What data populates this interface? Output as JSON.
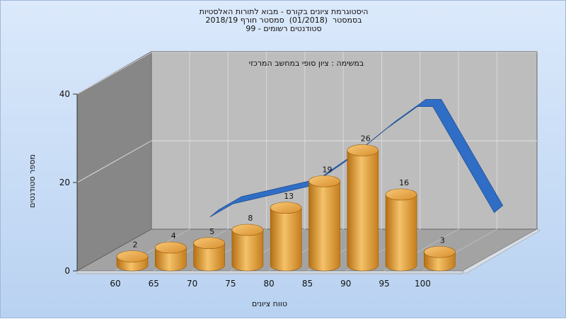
{
  "chart_data": {
    "type": "bar",
    "title_lines": [
      "היסטוגרמת ציונים בקורס - מבוא לתורות האלסטיות",
      "בסמסטר  (01/2018)  סמסטר חורף 2018/19",
      "סטודנטים רשומים - 99"
    ],
    "subtitle": "במשימה : ציון סופי במחשב המרכזי",
    "categories": [
      "60",
      "65",
      "70",
      "75",
      "80",
      "85",
      "90",
      "95",
      "100"
    ],
    "values": [
      2,
      4,
      5,
      8,
      13,
      19,
      26,
      16,
      3
    ],
    "curve": [
      {
        "x": 67,
        "y": 7
      },
      {
        "x": 70,
        "y": 10
      },
      {
        "x": 75,
        "y": 12
      },
      {
        "x": 80,
        "y": 14
      },
      {
        "x": 85,
        "y": 20
      },
      {
        "x": 90,
        "y": 27
      },
      {
        "x": 94,
        "y": 32
      },
      {
        "x": 96,
        "y": 32
      },
      {
        "x": 100,
        "y": 20
      },
      {
        "x": 104,
        "y": 8
      }
    ],
    "xlabel": "טווח ציונים",
    "ylabel": "מספר סטודנטים",
    "yticks": [
      0,
      20,
      40
    ],
    "ylim": [
      0,
      40
    ],
    "grid": true,
    "colors": {
      "bar": "#e8a33b",
      "curve": "#2f6ec4",
      "back_wall": "#c0c0c0",
      "side_wall": "#8a8a8a",
      "floor": "#9e9e9e"
    }
  }
}
